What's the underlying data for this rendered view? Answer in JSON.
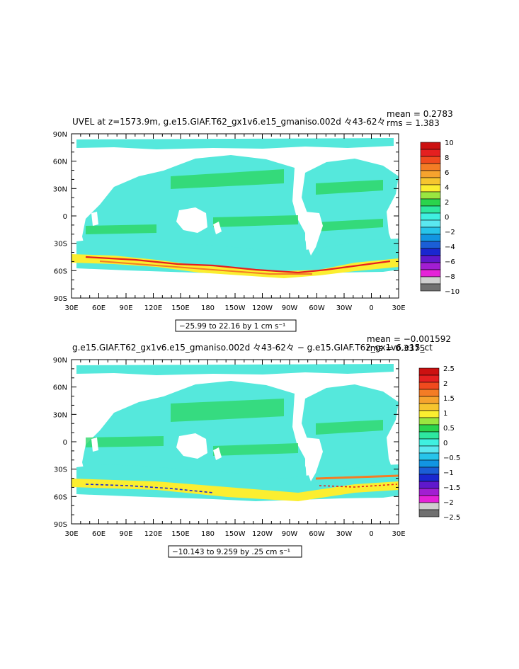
{
  "chart_data": [
    {
      "type": "heatmap",
      "title": "UVEL at z=1573.9m, g.e15.GIAF.T62_gx1v6.e15_gmaniso.002d 々43-62々",
      "stats": {
        "mean": "mean = 0.2783",
        "rms": "rms = 1.383"
      },
      "range_text": "−25.99 to 22.16 by 1 cm s⁻¹",
      "x_ticks": [
        "30E",
        "60E",
        "90E",
        "120E",
        "150E",
        "180",
        "150W",
        "120W",
        "90W",
        "60W",
        "30W",
        "0",
        "30E"
      ],
      "y_ticks": [
        "90N",
        "60N",
        "30N",
        "0",
        "30S",
        "60S",
        "90S"
      ],
      "colorbar": {
        "labels": [
          "10",
          "8",
          "6",
          "4",
          "2",
          "0",
          "−2",
          "−4",
          "−6",
          "−8",
          "−10"
        ],
        "colors": [
          "#cc1111",
          "#e52020",
          "#f04a1e",
          "#f47c25",
          "#f6a32e",
          "#f6c52f",
          "#fbee30",
          "#9ae640",
          "#2ad44c",
          "#2ee8a0",
          "#3ff0e0",
          "#5be8f0",
          "#27c4ea",
          "#1295e2",
          "#1b5ed6",
          "#1a27d0",
          "#6018cc",
          "#a21ed2",
          "#e522d8",
          "#cfcfcf",
          "#707070"
        ]
      },
      "ylim": [
        -90,
        90
      ],
      "legend_position": "right"
    },
    {
      "type": "heatmap",
      "title": "g.e15.GIAF.T62_gx1v6.e15_gmaniso.002d 々43-62々 − g.e15.GIAF.T62_gx1v6.e15_ct",
      "stats": {
        "mean": "mean = −0.001592",
        "rms": "rms = 0.3375"
      },
      "range_text": "−10.143 to 9.259 by .25 cm s⁻¹",
      "x_ticks": [
        "30E",
        "60E",
        "90E",
        "120E",
        "150E",
        "180",
        "150W",
        "120W",
        "90W",
        "60W",
        "30W",
        "0",
        "30E"
      ],
      "y_ticks": [
        "90N",
        "60N",
        "30N",
        "0",
        "30S",
        "60S",
        "90S"
      ],
      "colorbar": {
        "labels": [
          "2.5",
          "2",
          "1.5",
          "1",
          "0.5",
          "0",
          "−0.5",
          "−1",
          "−1.5",
          "−2",
          "−2.5"
        ],
        "colors": [
          "#cc1111",
          "#e52020",
          "#f04a1e",
          "#f47c25",
          "#f6a32e",
          "#f6c52f",
          "#fbee30",
          "#9ae640",
          "#2ad44c",
          "#2ee8a0",
          "#3ff0e0",
          "#5be8f0",
          "#27c4ea",
          "#1295e2",
          "#1b5ed6",
          "#1a27d0",
          "#6018cc",
          "#a21ed2",
          "#e522d8",
          "#cfcfcf",
          "#707070"
        ]
      },
      "ylim": [
        -90,
        90
      ],
      "legend_position": "right"
    }
  ]
}
